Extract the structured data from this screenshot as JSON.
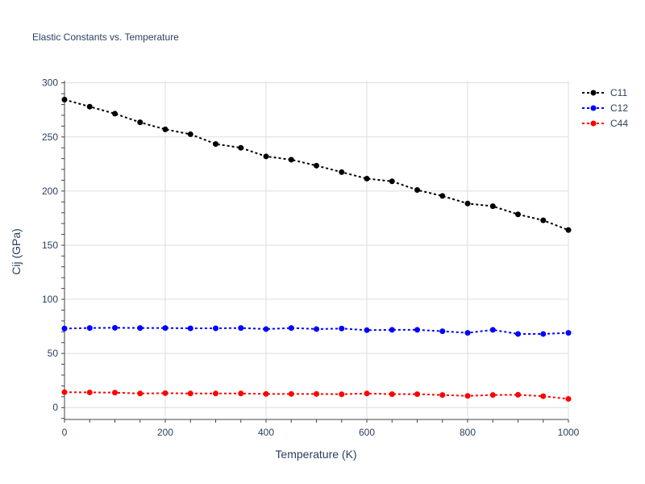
{
  "chart_data": {
    "type": "line",
    "title": "Elastic Constants vs. Temperature",
    "xlabel": "Temperature (K)",
    "ylabel": "Cij (GPa)",
    "xlim": [
      0,
      1000
    ],
    "ylim": [
      -11,
      302
    ],
    "xticks": [
      0,
      200,
      400,
      600,
      800,
      1000
    ],
    "yticks": [
      0,
      50,
      100,
      150,
      200,
      250,
      300
    ],
    "grid": true,
    "legend_position": "top-right",
    "x": [
      0,
      50,
      100,
      150,
      200,
      250,
      300,
      350,
      400,
      450,
      500,
      550,
      600,
      650,
      700,
      750,
      800,
      850,
      900,
      950,
      1000
    ],
    "series": [
      {
        "name": "C11",
        "color": "#000000",
        "line_style": "dotted",
        "values": [
          284.5,
          278,
          271.5,
          263.5,
          257,
          252.5,
          243.5,
          240,
          232,
          229,
          223.5,
          217.5,
          211.5,
          209,
          201,
          195.5,
          188.5,
          186,
          178.5,
          173,
          164
        ]
      },
      {
        "name": "C12",
        "color": "#0000ff",
        "line_style": "dotted",
        "values": [
          73,
          73.5,
          73.7,
          73.5,
          73.5,
          73.2,
          73.2,
          73.5,
          72.5,
          73.5,
          72.5,
          73,
          71.5,
          71.8,
          71.8,
          70.5,
          69,
          71.8,
          68,
          68,
          69
        ]
      },
      {
        "name": "C44",
        "color": "#ff0000",
        "line_style": "dotted",
        "values": [
          14.2,
          14,
          13.8,
          13,
          13.3,
          13,
          13,
          13,
          12.6,
          12.6,
          12.6,
          12.3,
          13,
          12.4,
          12.4,
          11.6,
          10.8,
          11.6,
          11.8,
          10.5,
          8
        ]
      }
    ]
  }
}
